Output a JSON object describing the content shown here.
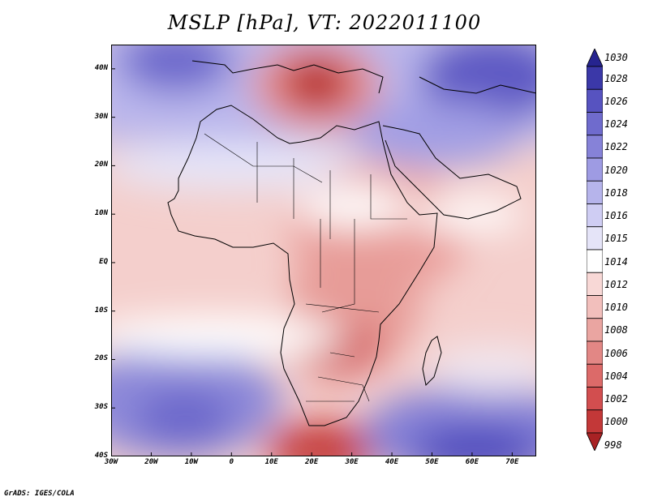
{
  "title": "MSLP [hPa], VT: 2022011100",
  "credit": "GrADS: IGES/COLA",
  "map": {
    "projection": "lat-lon",
    "lon_range_deg": [
      -30,
      76
    ],
    "lat_range_deg": [
      -40,
      45
    ],
    "field": "mean sea level pressure",
    "lat_ticks": [
      {
        "label": "40N",
        "value": 40
      },
      {
        "label": "30N",
        "value": 30
      },
      {
        "label": "20N",
        "value": 20
      },
      {
        "label": "10N",
        "value": 10
      },
      {
        "label": "EQ",
        "value": 0
      },
      {
        "label": "10S",
        "value": -10
      },
      {
        "label": "20S",
        "value": -20
      },
      {
        "label": "30S",
        "value": -30
      },
      {
        "label": "40S",
        "value": -40
      }
    ],
    "lon_ticks": [
      {
        "label": "30W",
        "value": -30
      },
      {
        "label": "20W",
        "value": -20
      },
      {
        "label": "10W",
        "value": -10
      },
      {
        "label": "0",
        "value": 0
      },
      {
        "label": "10E",
        "value": 10
      },
      {
        "label": "20E",
        "value": 20
      },
      {
        "label": "30E",
        "value": 30
      },
      {
        "label": "40E",
        "value": 40
      },
      {
        "label": "50E",
        "value": 50
      },
      {
        "label": "60E",
        "value": 60
      },
      {
        "label": "70E",
        "value": 70
      }
    ],
    "features": [
      {
        "name": "low-mediterranean",
        "kind": "low",
        "lon": 21,
        "lat": 35,
        "value": 998
      },
      {
        "name": "low-southern-africa",
        "kind": "low",
        "lon": 23,
        "lat": -18,
        "value": 1004
      },
      {
        "name": "low-southern-cape",
        "kind": "low",
        "lon": 20,
        "lat": -41,
        "value": 998
      },
      {
        "name": "high-north-atlantic",
        "kind": "high",
        "lon": -22,
        "lat": 42,
        "value": 1026
      },
      {
        "name": "high-arabia-asia",
        "kind": "high",
        "lon": 65,
        "lat": 37,
        "value": 1028
      },
      {
        "name": "high-south-atlantic",
        "kind": "high",
        "lon": -3,
        "lat": -31,
        "value": 1024
      },
      {
        "name": "high-south-indian",
        "kind": "high",
        "lon": 60,
        "lat": -36,
        "value": 1028
      }
    ]
  },
  "colorbar": {
    "levels": [
      "1030",
      "1028",
      "1026",
      "1024",
      "1022",
      "1020",
      "1018",
      "1016",
      "1015",
      "1014",
      "1012",
      "1010",
      "1008",
      "1006",
      "1004",
      "1002",
      "1000",
      "998"
    ],
    "colors": [
      "#26248f",
      "#3b38a8",
      "#5753c0",
      "#6f6bcd",
      "#8682d8",
      "#9e9be3",
      "#b6b4eb",
      "#cfcdf3",
      "#e5e4f8",
      "#ffffff",
      "#f8d8d6",
      "#f2bfbc",
      "#eaa5a1",
      "#e28785",
      "#dc6a69",
      "#d24e4f",
      "#c33838",
      "#a82224"
    ]
  }
}
